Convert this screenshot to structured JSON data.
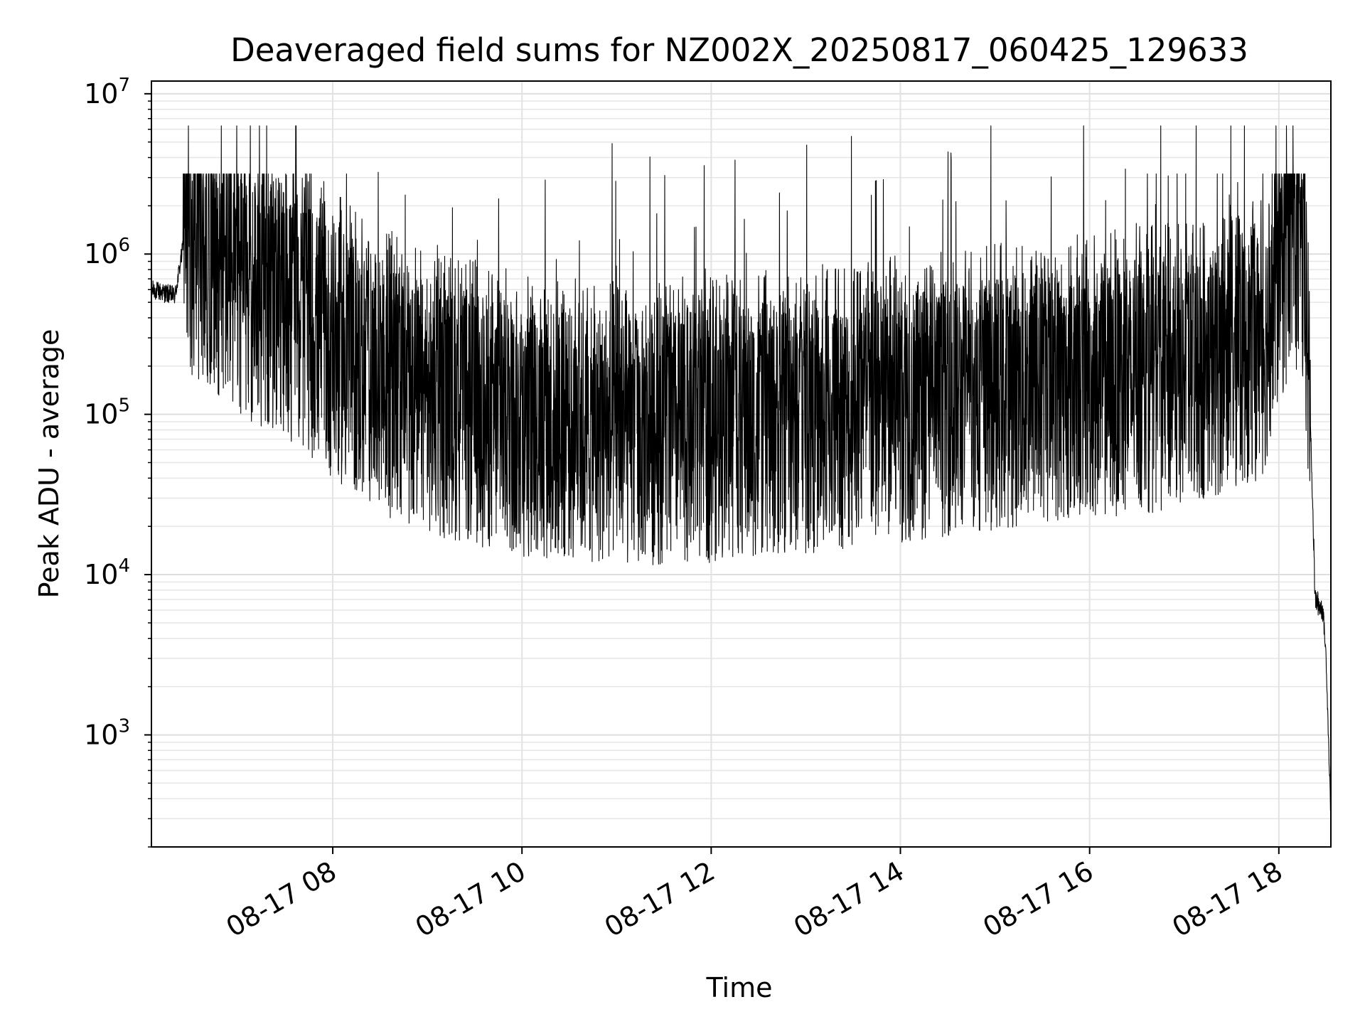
{
  "chart_data": {
    "type": "line",
    "title": "Deaveraged field sums for NZ002X_20250817_060425_129633",
    "xlabel": "Time",
    "ylabel": "Peak ADU - average",
    "yscale": "log",
    "ylim": [
      200,
      12000000
    ],
    "xlim": [
      "2025-08-17 06:05",
      "2025-08-17 18:33"
    ],
    "grid": true,
    "line_color": "#000000",
    "x_ticks": [
      {
        "time": "2025-08-17 08:00",
        "label": "08-17 08"
      },
      {
        "time": "2025-08-17 10:00",
        "label": "08-17 10"
      },
      {
        "time": "2025-08-17 12:00",
        "label": "08-17 12"
      },
      {
        "time": "2025-08-17 14:00",
        "label": "08-17 14"
      },
      {
        "time": "2025-08-17 16:00",
        "label": "08-17 16"
      },
      {
        "time": "2025-08-17 18:00",
        "label": "08-17 18"
      }
    ],
    "y_ticks": [
      {
        "value": 1000,
        "base": "10",
        "exp": "3"
      },
      {
        "value": 10000,
        "base": "10",
        "exp": "4"
      },
      {
        "value": 100000,
        "base": "10",
        "exp": "5"
      },
      {
        "value": 1000000,
        "base": "10",
        "exp": "6"
      },
      {
        "value": 10000000,
        "base": "10",
        "exp": "7"
      }
    ],
    "series": [
      {
        "points": [
          {
            "t": "2025-08-17 06:05",
            "y": 600000
          },
          {
            "t": "2025-08-17 06:20",
            "y": 550000
          },
          {
            "t": "2025-08-17 06:25",
            "y": 1100000
          },
          {
            "t": "2025-08-17 06:40",
            "y": 1000000
          },
          {
            "t": "2025-08-17 07:00",
            "y": 600000
          },
          {
            "t": "2025-08-17 07:20",
            "y": 500000
          },
          {
            "t": "2025-08-17 07:45",
            "y": 350000
          },
          {
            "t": "2025-08-17 08:00",
            "y": 250000
          },
          {
            "t": "2025-08-17 08:30",
            "y": 150000
          },
          {
            "t": "2025-08-17 09:00",
            "y": 110000
          },
          {
            "t": "2025-08-17 10:00",
            "y": 80000
          },
          {
            "t": "2025-08-17 11:00",
            "y": 70000
          },
          {
            "t": "2025-08-17 12:00",
            "y": 75000
          },
          {
            "t": "2025-08-17 13:00",
            "y": 85000
          },
          {
            "t": "2025-08-17 14:00",
            "y": 100000
          },
          {
            "t": "2025-08-17 15:00",
            "y": 120000
          },
          {
            "t": "2025-08-17 16:00",
            "y": 140000
          },
          {
            "t": "2025-08-17 17:00",
            "y": 160000
          },
          {
            "t": "2025-08-17 17:50",
            "y": 250000
          },
          {
            "t": "2025-08-17 18:00",
            "y": 700000
          },
          {
            "t": "2025-08-17 18:10",
            "y": 1200000
          },
          {
            "t": "2025-08-17 18:16",
            "y": 700000
          },
          {
            "t": "2025-08-17 18:20",
            "y": 100000
          },
          {
            "t": "2025-08-17 18:23",
            "y": 7000
          },
          {
            "t": "2025-08-17 18:28",
            "y": 6000
          },
          {
            "t": "2025-08-17 18:30",
            "y": 3000
          },
          {
            "t": "2025-08-17 18:33",
            "y": 300
          }
        ]
      }
    ]
  }
}
